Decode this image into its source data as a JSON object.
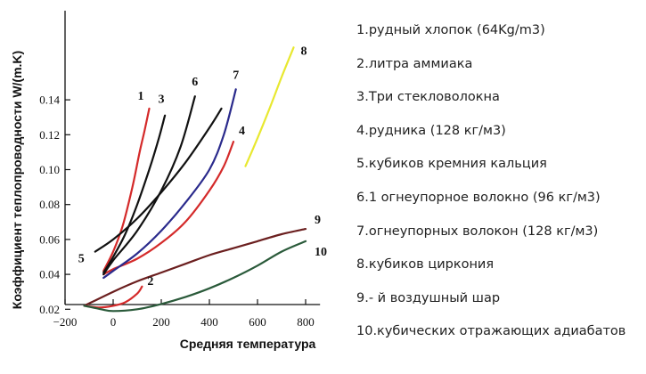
{
  "chart_data": {
    "type": "line",
    "title": "",
    "xlabel": "Средняя температура",
    "ylabel": "Коэффициент теплопроводности W/(m.K)",
    "xlim": [
      -200,
      860
    ],
    "ylim": [
      0,
      0.16
    ],
    "x_ticks": [
      -200,
      0,
      200,
      400,
      600,
      800
    ],
    "x_tick_labels": [
      "−200",
      "0",
      "200",
      "400",
      "600",
      "800"
    ],
    "y_ticks": [
      0.02,
      0.04,
      0.06,
      0.08,
      0.1,
      0.12,
      0.14
    ],
    "y_tick_labels": [
      "0.02",
      "0.04",
      "0.06",
      "0.08",
      "0.10",
      "0.12",
      "0.14"
    ],
    "legend_position": "right",
    "series": [
      {
        "label": "1",
        "name": "1.рудный хлопок (64Kg/m3)",
        "color": "#d42a2a",
        "x": [
          -40,
          0,
          40,
          80,
          110,
          130,
          150
        ],
        "y": [
          0.042,
          0.053,
          0.068,
          0.09,
          0.11,
          0.122,
          0.135
        ]
      },
      {
        "label": "2",
        "name": "2.литра аммиака",
        "color": "#d42a2a",
        "x": [
          -120,
          -60,
          0,
          50,
          100,
          120
        ],
        "y": [
          0.022,
          0.021,
          0.022,
          0.024,
          0.029,
          0.033
        ]
      },
      {
        "label": "3",
        "name": "3.Три стекловолокна",
        "color": "#111111",
        "x": [
          -40,
          0,
          50,
          100,
          150,
          190,
          215
        ],
        "y": [
          0.041,
          0.05,
          0.063,
          0.08,
          0.1,
          0.118,
          0.131
        ]
      },
      {
        "label": "4",
        "name": "4.рудника (128 кг/м3)",
        "color": "#d42a2a",
        "x": [
          -40,
          0,
          100,
          200,
          300,
          400,
          460,
          500
        ],
        "y": [
          0.04,
          0.043,
          0.049,
          0.058,
          0.07,
          0.088,
          0.102,
          0.116
        ]
      },
      {
        "label": "5",
        "name": "5.кубиков кремния кальция",
        "color": "#111111",
        "x": [
          -75,
          0,
          100,
          200,
          300,
          400,
          450
        ],
        "y": [
          0.053,
          0.06,
          0.072,
          0.087,
          0.104,
          0.124,
          0.135
        ]
      },
      {
        "label": "6",
        "name": "6.1 огнеупорное волокно (96 кг/м3)",
        "color": "#111111",
        "x": [
          -40,
          0,
          100,
          200,
          280,
          340
        ],
        "y": [
          0.04,
          0.048,
          0.065,
          0.088,
          0.113,
          0.142
        ]
      },
      {
        "label": "7",
        "name": "7.огнеупорных волокон (128 кг/м3)",
        "color": "#2a2a8c",
        "x": [
          -40,
          0,
          100,
          200,
          300,
          400,
          460,
          510
        ],
        "y": [
          0.038,
          0.042,
          0.052,
          0.065,
          0.081,
          0.1,
          0.12,
          0.146
        ]
      },
      {
        "label": "8",
        "name": "8.кубиков циркония",
        "color": "#e8e830",
        "x": [
          550,
          600,
          650,
          700,
          750
        ],
        "y": [
          0.102,
          0.118,
          0.135,
          0.153,
          0.17
        ]
      },
      {
        "label": "9",
        "name": "9.- й воздушный шар",
        "color": "#6b1f1f",
        "x": [
          -120,
          0,
          100,
          200,
          300,
          400,
          500,
          600,
          700,
          800
        ],
        "y": [
          0.022,
          0.03,
          0.036,
          0.041,
          0.046,
          0.051,
          0.055,
          0.059,
          0.063,
          0.066
        ]
      },
      {
        "label": "10",
        "name": "10.кубических отражающих адиабатов",
        "color": "#2a5a3a",
        "x": [
          -120,
          -50,
          0,
          100,
          200,
          300,
          400,
          500,
          600,
          700,
          800
        ],
        "y": [
          0.022,
          0.02,
          0.019,
          0.02,
          0.023,
          0.027,
          0.032,
          0.038,
          0.045,
          0.053,
          0.059
        ]
      }
    ]
  }
}
